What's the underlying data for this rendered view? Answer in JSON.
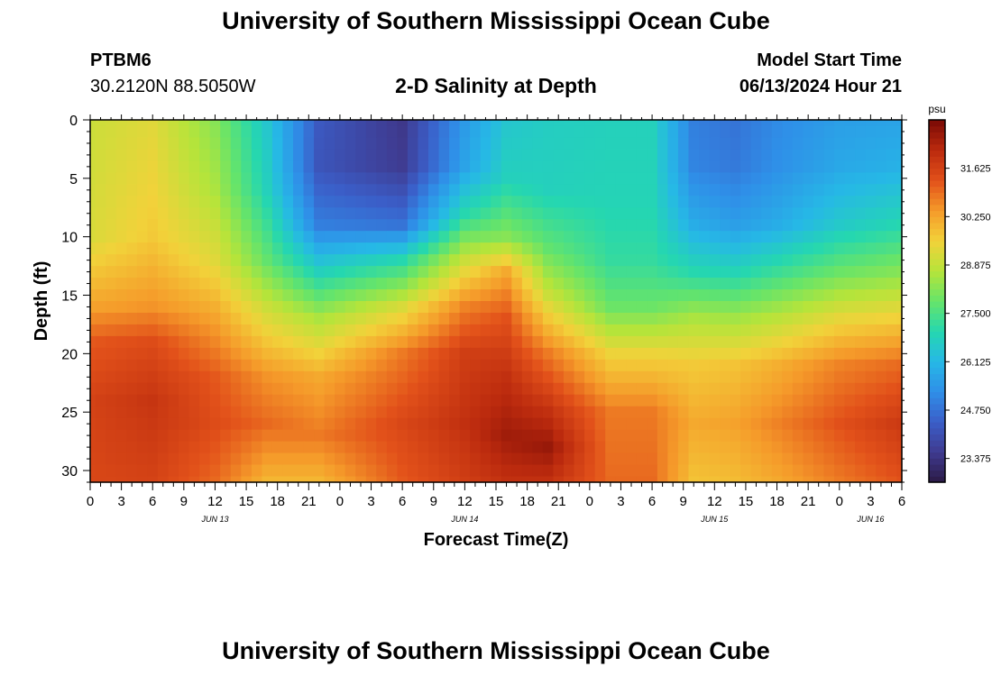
{
  "page": {
    "title": "University of Southern Mississippi Ocean Cube",
    "footer_title": "University of Southern Mississippi Ocean Cube",
    "station_id": "PTBM6",
    "station_coords": "30.2120N  88.5050W",
    "chart_title": "2-D Salinity at Depth",
    "model_start_label": "Model Start Time",
    "model_start_value": "06/13/2024 Hour 21"
  },
  "colors": {
    "background": "#ffffff",
    "axis": "#000000",
    "colormap": [
      "#2b1a45",
      "#3f3a8f",
      "#3b5ec8",
      "#2f8fe8",
      "#26b8e6",
      "#25d7b0",
      "#66e46a",
      "#b6e43a",
      "#f2d23a",
      "#f59a2a",
      "#e2511a",
      "#bb2a0e",
      "#7a0a05"
    ]
  },
  "chart_data": {
    "type": "heatmap",
    "title": "2-D Salinity at Depth",
    "xlabel": "Forecast Time(Z)",
    "ylabel": "Depth (ft)",
    "x_start_hour": 0,
    "x_step_hours": 1,
    "x_end_hour": 78,
    "x_tick_hours": [
      0,
      3,
      6,
      9,
      12,
      15,
      18,
      21,
      24,
      27,
      30,
      33,
      36,
      39,
      42,
      45,
      48,
      51,
      54,
      57,
      60,
      63,
      66,
      69,
      72,
      75,
      78
    ],
    "x_tick_labels": [
      "0",
      "3",
      "6",
      "9",
      "12",
      "15",
      "18",
      "21",
      "0",
      "3",
      "6",
      "9",
      "12",
      "15",
      "18",
      "21",
      "0",
      "3",
      "6",
      "9",
      "12",
      "15",
      "18",
      "21",
      "0",
      "3",
      "6"
    ],
    "date_labels": [
      {
        "hour": 12,
        "label": "JUN 13"
      },
      {
        "hour": 36,
        "label": "JUN 14"
      },
      {
        "hour": 60,
        "label": "JUN 15"
      },
      {
        "hour": 75,
        "label": "JUN 16"
      }
    ],
    "ylim": [
      31,
      0
    ],
    "y_ticks": [
      0,
      5,
      10,
      15,
      20,
      25,
      30
    ],
    "y_tick_labels": [
      "0",
      "5",
      "10",
      "15",
      "20",
      "25",
      "30"
    ],
    "depth_rows": [
      0,
      1,
      2,
      3,
      4,
      5,
      6,
      7,
      8,
      9,
      10,
      11,
      12,
      13,
      14,
      15,
      16,
      17,
      18,
      19,
      20,
      21,
      22,
      23,
      24,
      25,
      26,
      27,
      28,
      29,
      30,
      31
    ],
    "colorbar": {
      "unit": "psu",
      "min": 22.7,
      "max": 33.0,
      "ticks": [
        31.625,
        30.25,
        28.875,
        27.5,
        26.125,
        24.75,
        23.375
      ],
      "tick_labels": [
        "31.625",
        "30.250",
        "28.875",
        "27.500",
        "26.125",
        "24.750",
        "23.375"
      ]
    },
    "salinity_field_psu": {
      "time_anchors_hour": [
        0,
        6,
        12,
        17,
        22,
        30,
        36,
        40,
        44,
        50,
        54,
        58,
        62,
        66,
        72,
        78
      ],
      "profiles_by_anchor": [
        {
          "depth_ft": [
            0,
            10,
            16,
            19,
            24,
            31
          ],
          "psu": [
            29.0,
            29.2,
            30.3,
            31.2,
            31.6,
            31.5
          ]
        },
        {
          "depth_ft": [
            0,
            10,
            16,
            19,
            24,
            31
          ],
          "psu": [
            29.3,
            29.7,
            30.5,
            31.4,
            31.9,
            31.6
          ]
        },
        {
          "depth_ft": [
            0,
            6,
            12,
            16,
            22,
            26,
            31
          ],
          "psu": [
            28.2,
            28.6,
            29.3,
            30.1,
            31.2,
            31.4,
            31.0
          ]
        },
        {
          "depth_ft": [
            0,
            6,
            12,
            16,
            22,
            26,
            31
          ],
          "psu": [
            26.5,
            26.8,
            27.8,
            29.0,
            30.5,
            31.0,
            30.0
          ]
        },
        {
          "depth_ft": [
            0,
            4,
            9,
            13,
            17,
            22,
            27,
            31
          ],
          "psu": [
            24.3,
            24.2,
            25.0,
            26.8,
            28.6,
            30.2,
            30.8,
            30.0
          ]
        },
        {
          "depth_ft": [
            0,
            4,
            9,
            12,
            16,
            20,
            26,
            31
          ],
          "psu": [
            23.5,
            23.6,
            24.8,
            27.0,
            29.2,
            30.8,
            31.5,
            31.2
          ]
        },
        {
          "depth_ft": [
            0,
            4,
            8,
            12,
            16,
            20,
            26,
            31
          ],
          "psu": [
            25.5,
            25.7,
            27.0,
            29.0,
            30.7,
            31.7,
            32.0,
            31.7
          ]
        },
        {
          "depth_ft": [
            0,
            5,
            10,
            13,
            17,
            22,
            27,
            31
          ],
          "psu": [
            26.5,
            26.8,
            28.2,
            30.2,
            31.3,
            32.0,
            32.5,
            32.0
          ]
        },
        {
          "depth_ft": [
            0,
            6,
            11,
            15,
            20,
            25,
            28,
            31
          ],
          "psu": [
            26.7,
            26.8,
            27.8,
            29.0,
            30.8,
            32.0,
            32.6,
            32.0
          ]
        },
        {
          "depth_ft": [
            0,
            7,
            12,
            16,
            20,
            25,
            31
          ],
          "psu": [
            26.8,
            26.9,
            27.2,
            27.9,
            29.5,
            30.8,
            31.0
          ]
        },
        {
          "depth_ft": [
            0,
            7,
            12,
            16,
            20,
            25,
            31
          ],
          "psu": [
            26.8,
            26.9,
            27.2,
            27.9,
            29.5,
            30.8,
            31.0
          ]
        },
        {
          "depth_ft": [
            0,
            4,
            9,
            13,
            17,
            21,
            26,
            31
          ],
          "psu": [
            25.0,
            25.1,
            25.9,
            27.0,
            28.6,
            29.7,
            30.2,
            29.8
          ]
        },
        {
          "depth_ft": [
            0,
            4,
            9,
            13,
            17,
            21,
            26,
            31
          ],
          "psu": [
            24.8,
            24.9,
            25.6,
            26.9,
            28.5,
            29.8,
            30.3,
            29.9
          ]
        },
        {
          "depth_ft": [
            0,
            4,
            9,
            13,
            17,
            21,
            26,
            31
          ],
          "psu": [
            25.2,
            25.3,
            25.9,
            27.3,
            28.8,
            30.1,
            30.7,
            30.2
          ]
        },
        {
          "depth_ft": [
            0,
            4,
            9,
            13,
            17,
            21,
            26,
            31
          ],
          "psu": [
            25.6,
            25.8,
            26.6,
            27.9,
            29.4,
            30.7,
            31.3,
            30.8
          ]
        },
        {
          "depth_ft": [
            0,
            4,
            9,
            13,
            17,
            21,
            26,
            31
          ],
          "psu": [
            25.7,
            26.0,
            27.0,
            28.2,
            29.6,
            31.0,
            31.8,
            31.3
          ]
        }
      ]
    }
  }
}
